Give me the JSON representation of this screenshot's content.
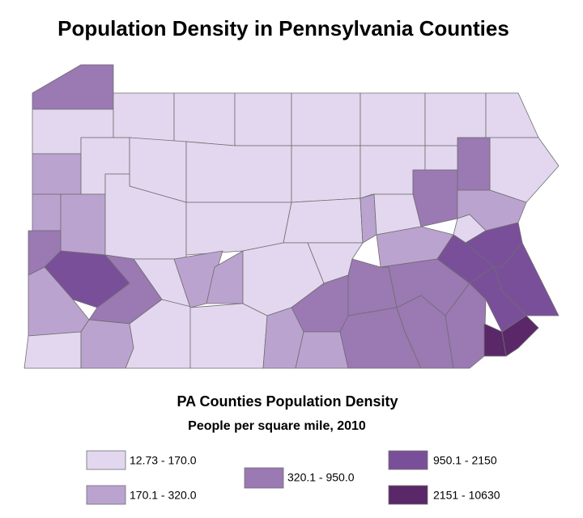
{
  "title": "Population Density in Pennsylvania Counties",
  "legend": {
    "title": "PA Counties Population Density",
    "subtitle": "People per square mile, 2010",
    "classes": [
      {
        "label": "12.73 - 170.0",
        "color": "#e3d7ef"
      },
      {
        "label": "170.1 - 320.0",
        "color": "#bba3d0"
      },
      {
        "label": "320.1 - 950.0",
        "color": "#9b79b3"
      },
      {
        "label": "950.1 - 2150",
        "color": "#7a4f9a"
      },
      {
        "label": "2151 - 10630",
        "color": "#5a2868"
      }
    ]
  }
}
